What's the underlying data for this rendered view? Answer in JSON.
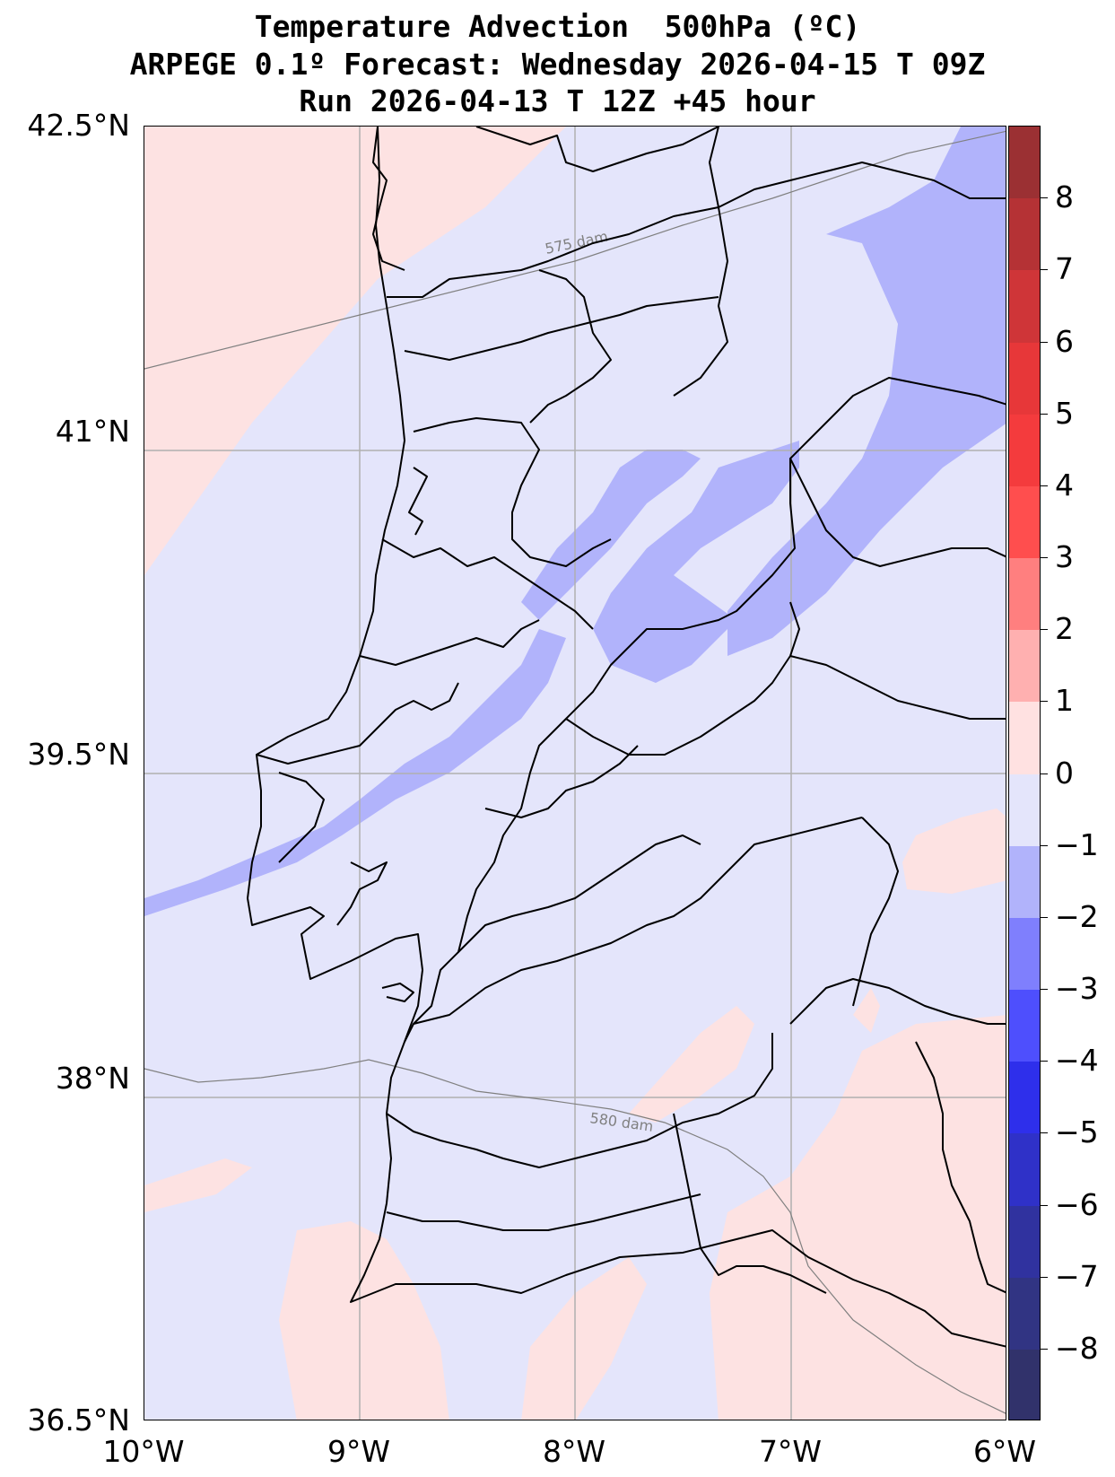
{
  "title": {
    "line1": "Temperature Advection  500hPa (ºC)",
    "line2": "ARPEGE 0.1º Forecast: Wednesday 2026-04-15 T 09Z",
    "line3": "Run 2026-04-13 T 12Z +45 hour"
  },
  "map": {
    "lat_labels": [
      "42.5°N",
      "41°N",
      "39.5°N",
      "38°N",
      "36.5°N"
    ],
    "lon_labels": [
      "10°W",
      "9°W",
      "8°W",
      "7°W",
      "6°W"
    ],
    "lat_values": [
      42.5,
      41,
      39.5,
      38,
      36.5
    ],
    "lon_values": [
      -10,
      -9,
      -8,
      -7,
      -6
    ],
    "contour_labels": {
      "upper": "575 dam",
      "lower": "580 dam"
    },
    "colors": {
      "neutral_negative": "#e4e5fb",
      "weak_positive": "#fde2e2",
      "moderate_negative": "#b1b3fb",
      "grid": "#b0b0b0",
      "contour": "#808080",
      "border": "#000000"
    }
  },
  "colorbar": {
    "tick_labels": [
      "8",
      "7",
      "6",
      "5",
      "4",
      "3",
      "2",
      "1",
      "0",
      "−1",
      "−2",
      "−3",
      "−4",
      "−5",
      "−6",
      "−7",
      "−8"
    ],
    "tick_values": [
      8,
      7,
      6,
      5,
      4,
      3,
      2,
      1,
      0,
      -1,
      -2,
      -3,
      -4,
      -5,
      -6,
      -7,
      -8
    ],
    "segments": [
      {
        "from": 8,
        "to": 9,
        "color": "#9b3033"
      },
      {
        "from": 7,
        "to": 8,
        "color": "#b53235"
      },
      {
        "from": 6,
        "to": 7,
        "color": "#cf3538"
      },
      {
        "from": 5,
        "to": 6,
        "color": "#e73739"
      },
      {
        "from": 4,
        "to": 5,
        "color": "#f43b3d"
      },
      {
        "from": 3,
        "to": 4,
        "color": "#ff4e4e"
      },
      {
        "from": 2,
        "to": 3,
        "color": "#ff7f7f"
      },
      {
        "from": 1,
        "to": 2,
        "color": "#ffb0b0"
      },
      {
        "from": 0,
        "to": 1,
        "color": "#ffe1e1"
      },
      {
        "from": -1,
        "to": 0,
        "color": "#e4e5fb"
      },
      {
        "from": -2,
        "to": -1,
        "color": "#b1b3fb"
      },
      {
        "from": -3,
        "to": -2,
        "color": "#7f7ffd"
      },
      {
        "from": -4,
        "to": -3,
        "color": "#4e4ffd"
      },
      {
        "from": -5,
        "to": -4,
        "color": "#2e2feb"
      },
      {
        "from": -6,
        "to": -5,
        "color": "#2f31c8"
      },
      {
        "from": -7,
        "to": -6,
        "color": "#30329f"
      },
      {
        "from": -8,
        "to": -7,
        "color": "#313483"
      },
      {
        "from": -9,
        "to": -8,
        "color": "#31326b"
      }
    ]
  }
}
